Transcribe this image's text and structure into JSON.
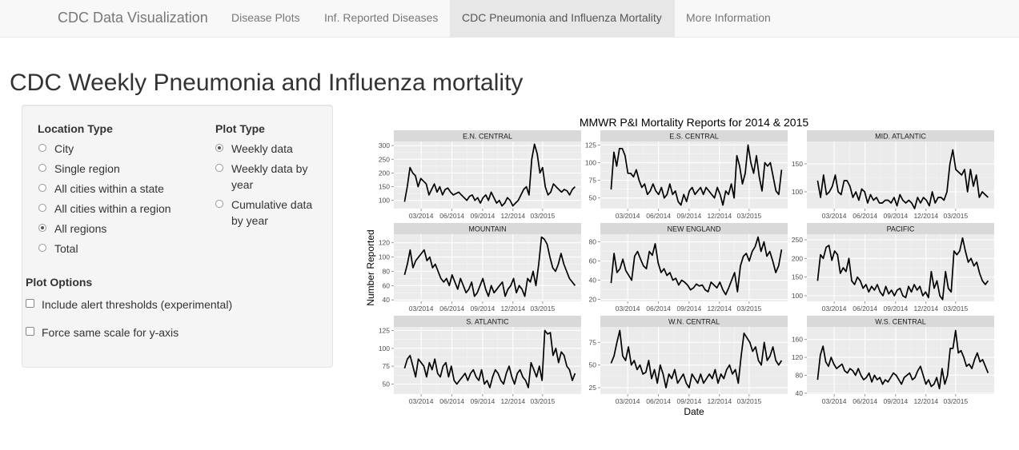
{
  "nav": {
    "brand": "CDC Data Visualization",
    "items": [
      {
        "label": "Disease Plots",
        "active": false
      },
      {
        "label": "Inf. Reported Diseases",
        "active": false
      },
      {
        "label": "CDC Pneumonia and Influenza Mortality",
        "active": true
      },
      {
        "label": "More Information",
        "active": false
      }
    ]
  },
  "page_title": "CDC Weekly Pneumonia and Influenza mortality",
  "sidebar": {
    "location_type": {
      "label": "Location Type",
      "options": [
        "City",
        "Single region",
        "All cities within a state",
        "All cities within a region",
        "All regions",
        "Total"
      ],
      "selected": "All regions"
    },
    "plot_type": {
      "label": "Plot Type",
      "options": [
        [
          "Weekly data"
        ],
        [
          "Weekly data by",
          "year"
        ],
        [
          "Cumulative data",
          "by year"
        ]
      ],
      "selected": "Weekly data"
    },
    "plot_options": {
      "label": "Plot Options",
      "checkboxes": [
        {
          "label": "Include alert thresholds (experimental)",
          "checked": false
        },
        {
          "label": "Force same scale for y-axis",
          "checked": false
        }
      ]
    }
  },
  "chart_data": {
    "type": "line",
    "title": "MMWR P&I Mortality Reports for 2014 & 2015",
    "xlabel": "Date",
    "ylabel": "Number Reported",
    "x_ticks": [
      "03/2014",
      "06/2014",
      "09/2014",
      "12/2014",
      "03/2015"
    ],
    "x_start": "2014-01-04",
    "panels": [
      {
        "name": "E.N. CENTRAL",
        "yticks": [
          100,
          150,
          200,
          250,
          300
        ],
        "ylim": [
          70,
          315
        ],
        "values": [
          95,
          150,
          220,
          200,
          190,
          150,
          180,
          170,
          160,
          120,
          140,
          160,
          130,
          150,
          120,
          140,
          145,
          130,
          120,
          125,
          130,
          120,
          110,
          100,
          115,
          120,
          100,
          110,
          90,
          110,
          120,
          100,
          130,
          110,
          90,
          100,
          80,
          90,
          110,
          100,
          80,
          90,
          100,
          120,
          140,
          150,
          120,
          250,
          305,
          270,
          200,
          220,
          150,
          120,
          130,
          160,
          150,
          140,
          130,
          140,
          135,
          120,
          140,
          150
        ],
        "colors": {}
      },
      {
        "name": "E.S. CENTRAL",
        "yticks": [
          50,
          75,
          100,
          125
        ],
        "ylim": [
          35,
          130
        ],
        "values": [
          62,
          115,
          95,
          120,
          120,
          110,
          85,
          85,
          80,
          90,
          75,
          65,
          70,
          55,
          60,
          70,
          60,
          55,
          65,
          50,
          55,
          70,
          55,
          60,
          45,
          40,
          55,
          45,
          60,
          65,
          55,
          60,
          65,
          55,
          65,
          60,
          55,
          50,
          65,
          55,
          40,
          60,
          55,
          70,
          50,
          110,
          95,
          70,
          85,
          125,
          100,
          85,
          110,
          80,
          60,
          100,
          95,
          100,
          80,
          60,
          55,
          90
        ],
        "colors": {}
      },
      {
        "name": "MID. ATLANTIC",
        "yticks": [
          100,
          150
        ],
        "ylim": [
          70,
          190
        ],
        "values": [
          120,
          90,
          130,
          95,
          100,
          110,
          130,
          100,
          95,
          120,
          120,
          110,
          90,
          100,
          85,
          105,
          100,
          80,
          95,
          85,
          90,
          80,
          80,
          85,
          85,
          80,
          90,
          75,
          95,
          85,
          80,
          85,
          80,
          70,
          90,
          80,
          90,
          85,
          75,
          100,
          80,
          90,
          90,
          85,
          100,
          150,
          175,
          140,
          135,
          130,
          140,
          100,
          140,
          110,
          130,
          90,
          100,
          95,
          90
        ],
        "colors": {}
      },
      {
        "name": "MOUNTAIN",
        "yticks": [
          40,
          60,
          80,
          100,
          120
        ],
        "ylim": [
          38,
          132
        ],
        "values": [
          75,
          90,
          110,
          85,
          95,
          100,
          105,
          110,
          95,
          100,
          85,
          90,
          80,
          70,
          65,
          70,
          60,
          75,
          65,
          55,
          70,
          60,
          50,
          55,
          65,
          45,
          50,
          60,
          70,
          55,
          45,
          60,
          50,
          55,
          60,
          65,
          45,
          55,
          60,
          70,
          50,
          60,
          55,
          45,
          70,
          65,
          80,
          60,
          90,
          128,
          125,
          118,
          100,
          85,
          80,
          90,
          105,
          90,
          80,
          70,
          65,
          60
        ],
        "colors": {}
      },
      {
        "name": "NEW ENGLAND",
        "yticks": [
          20,
          40,
          60,
          80
        ],
        "ylim": [
          18,
          88
        ],
        "values": [
          37,
          68,
          48,
          52,
          62,
          50,
          45,
          40,
          65,
          70,
          62,
          55,
          52,
          70,
          66,
          78,
          58,
          48,
          52,
          45,
          48,
          40,
          42,
          35,
          40,
          38,
          35,
          30,
          32,
          36,
          34,
          35,
          30,
          28,
          38,
          35,
          32,
          38,
          30,
          25,
          32,
          40,
          48,
          28,
          55,
          65,
          68,
          60,
          70,
          75,
          85,
          70,
          80,
          65,
          70,
          60,
          48,
          55,
          72
        ],
        "colors": {}
      },
      {
        "name": "PACIFIC",
        "yticks": [
          100,
          150,
          200,
          250
        ],
        "ylim": [
          85,
          265
        ],
        "values": [
          140,
          210,
          200,
          230,
          235,
          195,
          220,
          210,
          160,
          175,
          165,
          200,
          140,
          130,
          150,
          140,
          120,
          130,
          110,
          125,
          115,
          130,
          110,
          100,
          125,
          105,
          115,
          100,
          115,
          120,
          100,
          95,
          125,
          110,
          130,
          115,
          125,
          100,
          110,
          95,
          165,
          120,
          140,
          100,
          90,
          165,
          120,
          110,
          220,
          210,
          220,
          255,
          220,
          190,
          200,
          180,
          190,
          160,
          140,
          130,
          140
        ],
        "colors": {}
      },
      {
        "name": "S. ATLANTIC",
        "yticks": [
          50,
          75,
          100,
          125
        ],
        "ylim": [
          36,
          130
        ],
        "values": [
          72,
          85,
          90,
          75,
          60,
          85,
          80,
          75,
          60,
          80,
          70,
          85,
          65,
          60,
          75,
          80,
          60,
          75,
          55,
          50,
          55,
          60,
          65,
          55,
          65,
          70,
          60,
          55,
          70,
          50,
          55,
          45,
          60,
          70,
          65,
          55,
          50,
          65,
          75,
          60,
          50,
          65,
          70,
          60,
          55,
          45,
          80,
          70,
          60,
          75,
          55,
          125,
          120,
          122,
          90,
          100,
          80,
          95,
          90,
          75,
          70,
          55,
          65
        ],
        "colors": {}
      },
      {
        "name": "W.N. CENTRAL",
        "yticks": [
          25,
          50,
          75
        ],
        "ylim": [
          18,
          92
        ],
        "values": [
          52,
          60,
          75,
          88,
          60,
          55,
          70,
          50,
          55,
          45,
          50,
          40,
          42,
          55,
          35,
          45,
          30,
          50,
          40,
          25,
          40,
          35,
          45,
          30,
          35,
          40,
          30,
          25,
          40,
          35,
          30,
          40,
          30,
          35,
          40,
          35,
          45,
          30,
          40,
          35,
          45,
          50,
          40,
          45,
          30,
          60,
          85,
          80,
          75,
          65,
          70,
          55,
          50,
          75,
          55,
          60,
          70,
          55,
          50,
          55
        ],
        "colors": {}
      },
      {
        "name": "W.S. CENTRAL",
        "yticks": [
          40,
          80,
          120,
          160
        ],
        "ylim": [
          38,
          188
        ],
        "values": [
          70,
          125,
          145,
          110,
          100,
          120,
          105,
          95,
          100,
          105,
          90,
          85,
          95,
          90,
          80,
          95,
          80,
          70,
          75,
          85,
          65,
          80,
          70,
          75,
          60,
          70,
          65,
          75,
          85,
          80,
          70,
          60,
          75,
          80,
          85,
          70,
          75,
          90,
          100,
          80,
          60,
          70,
          55,
          60,
          75,
          50,
          95,
          60,
          80,
          140,
          140,
          180,
          130,
          135,
          120,
          100,
          105,
          95,
          115,
          130,
          110,
          115,
          100,
          85
        ],
        "colors": {}
      }
    ]
  }
}
